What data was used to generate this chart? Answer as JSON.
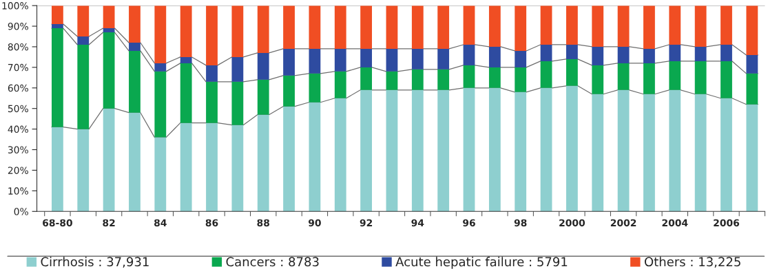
{
  "chart_data": {
    "type": "bar",
    "stacked": true,
    "categories": [
      "68-80",
      null,
      "82",
      null,
      "84",
      null,
      "86",
      null,
      "88",
      null,
      "90",
      null,
      "92",
      null,
      "94",
      null,
      "96",
      null,
      "98",
      null,
      "2000",
      null,
      "2002",
      null,
      "2004",
      null,
      "2006",
      null
    ],
    "series": [
      {
        "name": "Cirrhosis : 37,931",
        "color": "#8ecfcf",
        "values": [
          41,
          40,
          50,
          48,
          36,
          43,
          43,
          42,
          47,
          51,
          53,
          55,
          59,
          59,
          59,
          59,
          60,
          60,
          58,
          60,
          61,
          57,
          59,
          57,
          59,
          57,
          55,
          52
        ]
      },
      {
        "name": "Cancers : 8783",
        "color": "#0aa84f",
        "values": [
          48,
          41,
          37,
          30,
          32,
          29,
          20,
          21,
          17,
          15,
          14,
          13,
          11,
          9,
          10,
          10,
          11,
          10,
          12,
          13,
          13,
          14,
          13,
          15,
          14,
          16,
          18,
          15
        ]
      },
      {
        "name": "Acute hepatic failure : 5791",
        "color": "#2e4ba0",
        "values": [
          2,
          4,
          2,
          4,
          4,
          3,
          8,
          12,
          13,
          13,
          12,
          11,
          9,
          11,
          10,
          10,
          10,
          10,
          8,
          8,
          7,
          9,
          8,
          7,
          8,
          7,
          8,
          9
        ]
      },
      {
        "name": "Others : 13,225",
        "color": "#f04e23",
        "values": [
          9,
          15,
          11,
          18,
          28,
          25,
          29,
          25,
          23,
          21,
          21,
          21,
          21,
          21,
          21,
          21,
          19,
          20,
          22,
          19,
          19,
          20,
          20,
          21,
          19,
          20,
          19,
          24
        ]
      }
    ],
    "ylim": [
      0,
      100
    ],
    "yticks": [
      {
        "value": 0,
        "label": "0%"
      },
      {
        "value": 10,
        "label": "10%"
      },
      {
        "value": 20,
        "label": "20%"
      },
      {
        "value": 30,
        "label": "30%"
      },
      {
        "value": 40,
        "label": "40%"
      },
      {
        "value": 50,
        "label": "50%"
      },
      {
        "value": 60,
        "label": "60%"
      },
      {
        "value": 70,
        "label": "70%"
      },
      {
        "value": 80,
        "label": "80%"
      },
      {
        "value": 90,
        "label": "90%"
      },
      {
        "value": 100,
        "label": "100%"
      }
    ],
    "legend": "bottom",
    "grid": false
  }
}
